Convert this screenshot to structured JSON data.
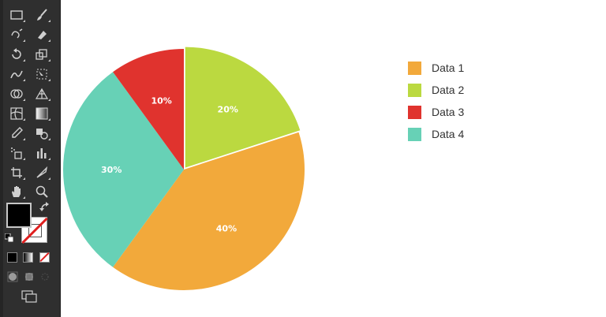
{
  "toolbar": {
    "tools": [
      {
        "name": "rectangle-tool",
        "icon": "rectangle-icon"
      },
      {
        "name": "paintbrush-tool",
        "icon": "paintbrush-icon"
      },
      {
        "name": "shaper-tool",
        "icon": "shaper-icon"
      },
      {
        "name": "eraser-tool",
        "icon": "eraser-icon"
      },
      {
        "name": "rotate-tool",
        "icon": "rotate-icon"
      },
      {
        "name": "scale-tool",
        "icon": "scale-icon"
      },
      {
        "name": "warp-tool",
        "icon": "warp-icon"
      },
      {
        "name": "free-transform-tool",
        "icon": "free-transform-icon"
      },
      {
        "name": "shape-builder-tool",
        "icon": "shape-builder-icon"
      },
      {
        "name": "perspective-grid-tool",
        "icon": "perspective-grid-icon"
      },
      {
        "name": "mesh-tool",
        "icon": "mesh-icon"
      },
      {
        "name": "gradient-tool",
        "icon": "gradient-icon"
      },
      {
        "name": "eyedropper-tool",
        "icon": "eyedropper-icon"
      },
      {
        "name": "blend-tool",
        "icon": "blend-icon"
      },
      {
        "name": "symbol-sprayer-tool",
        "icon": "symbol-sprayer-icon"
      },
      {
        "name": "column-graph-tool",
        "icon": "column-graph-icon"
      },
      {
        "name": "artboard-tool",
        "icon": "artboard-icon"
      },
      {
        "name": "slice-tool",
        "icon": "slice-icon"
      },
      {
        "name": "hand-tool",
        "icon": "hand-icon"
      },
      {
        "name": "zoom-tool",
        "icon": "zoom-icon"
      }
    ],
    "fill_color": "#000000",
    "stroke_color": "none"
  },
  "chart_data": {
    "type": "pie",
    "categories": [
      "Data 1",
      "Data 2",
      "Data 3",
      "Data 4"
    ],
    "values": [
      40,
      20,
      10,
      30
    ],
    "labels": [
      "40%",
      "20%",
      "10%",
      "30%"
    ],
    "colors": [
      "#F2A93B",
      "#BBD940",
      "#E0332E",
      "#67D1B6"
    ],
    "exploded": "Data 2",
    "legend_position": "right"
  },
  "legend": {
    "items": [
      {
        "label": "Data 1",
        "color": "#F2A93B"
      },
      {
        "label": "Data 2",
        "color": "#BBD940"
      },
      {
        "label": "Data 3",
        "color": "#E0332E"
      },
      {
        "label": "Data 4",
        "color": "#67D1B6"
      }
    ]
  }
}
